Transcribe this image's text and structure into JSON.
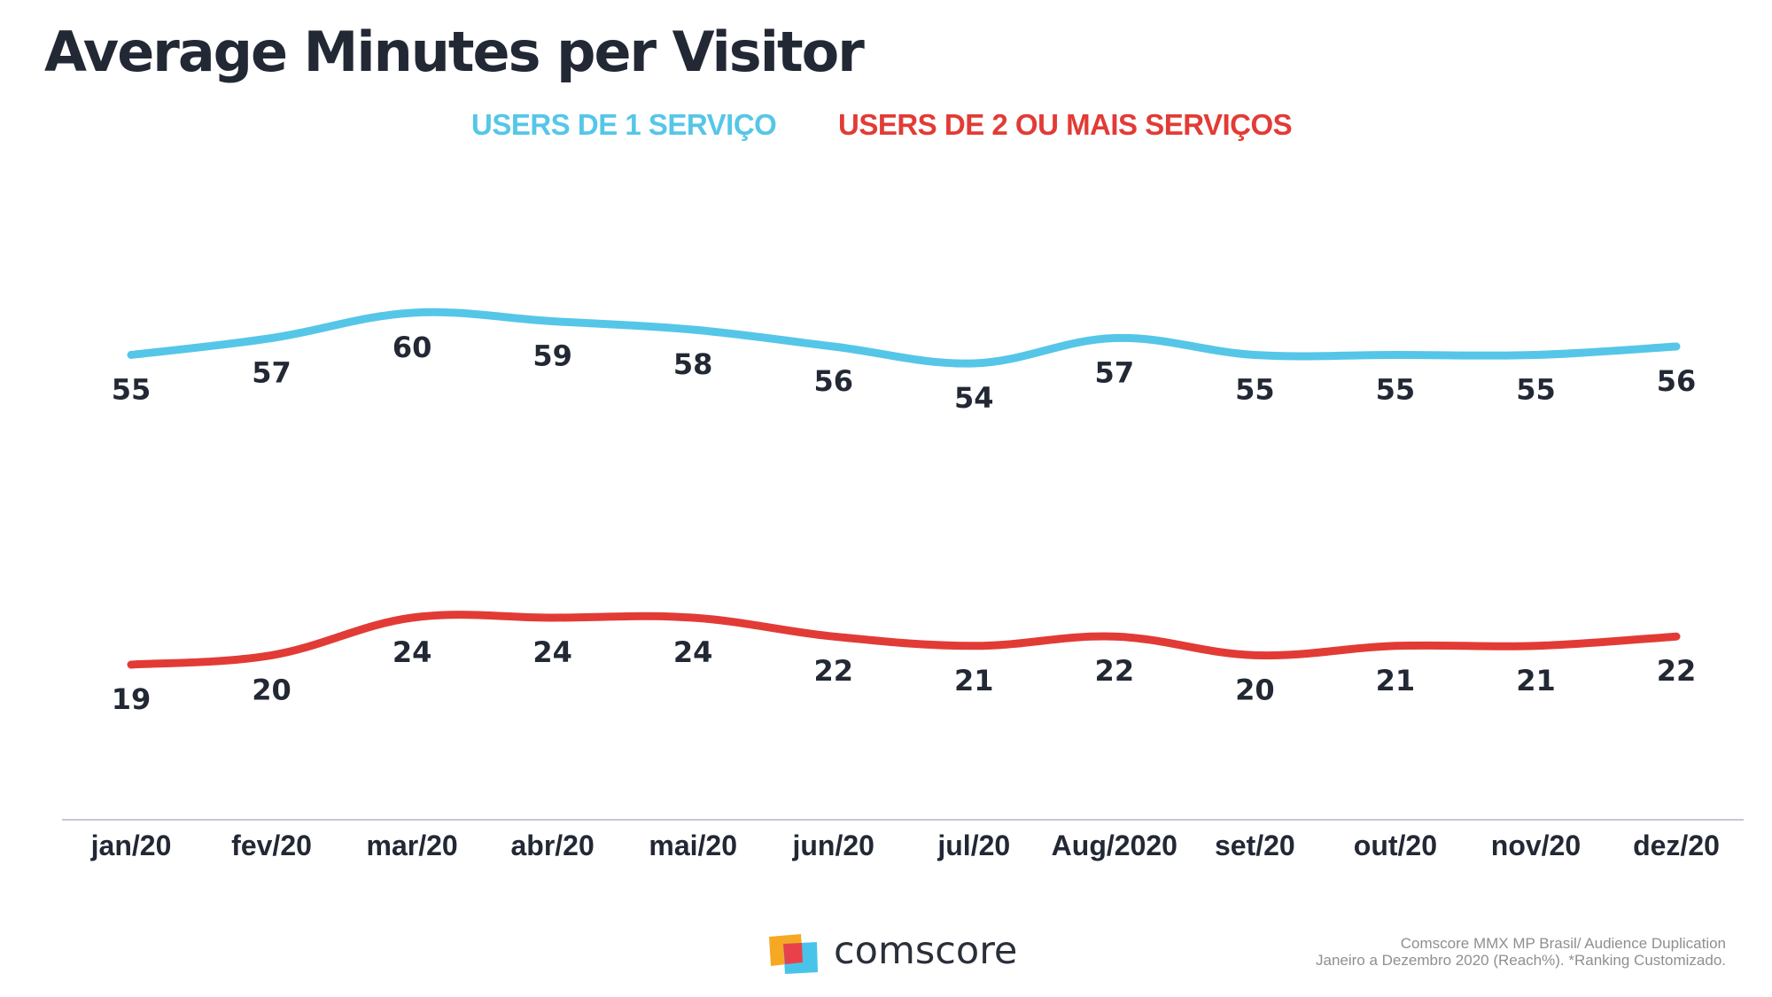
{
  "title": "Average Minutes per Visitor",
  "legend": {
    "series1": "USERS DE 1 SERVIÇO",
    "series2": "USERS DE 2 OU MAIS SERVIÇOS"
  },
  "colors": {
    "series1": "#55c6e8",
    "series2": "#e23b36",
    "title": "#222834",
    "axis_label": "#222834",
    "value_label": "#222834",
    "baseline": "#c5c9d6"
  },
  "chart_data": {
    "type": "line",
    "title": "Average Minutes per Visitor",
    "categories": [
      "jan/20",
      "fev/20",
      "mar/20",
      "abr/20",
      "mai/20",
      "jun/20",
      "jul/20",
      "Aug/2020",
      "set/20",
      "out/20",
      "nov/20",
      "dez/20"
    ],
    "series": [
      {
        "name": "USERS DE 1 SERVIÇO",
        "values": [
          55,
          57,
          60,
          59,
          58,
          56,
          54,
          57,
          55,
          55,
          55,
          56
        ],
        "color": "#55c6e8"
      },
      {
        "name": "USERS DE 2 OU MAIS SERVIÇOS",
        "values": [
          19,
          20,
          24,
          24,
          24,
          22,
          21,
          22,
          20,
          21,
          21,
          22
        ],
        "color": "#e23b36"
      }
    ],
    "xlabel": "",
    "ylabel": "",
    "grid": false,
    "y_axis_shown": false,
    "legend_position": "top-center",
    "data_labels": "below-points"
  },
  "footer": {
    "logo_text": "comscore",
    "source_line1": "Comscore MMX MP Brasil/ Audience Duplication",
    "source_line2": "Janeiro a Dezembro 2020 (Reach%). *Ranking Customizado."
  }
}
